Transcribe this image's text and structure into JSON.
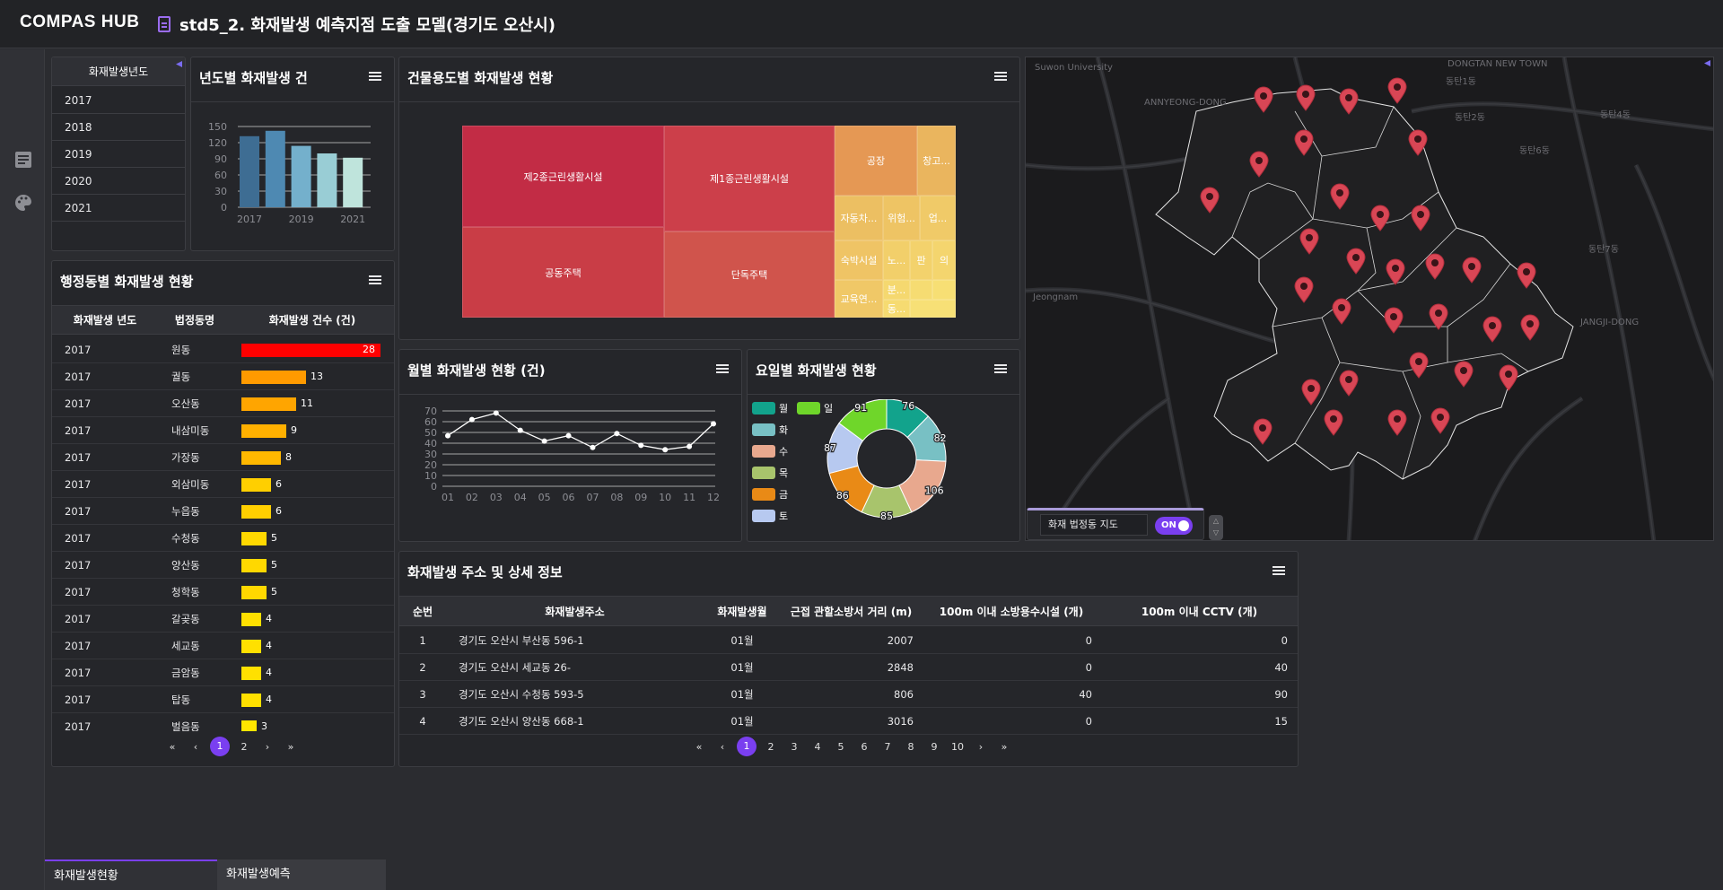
{
  "header": {
    "logo": "COMPAS HUB",
    "title": "std5_2. 화재발생 예측지점 도출 모델(경기도 오산시)"
  },
  "year_filter": {
    "header": "화재발생년도",
    "years": [
      "2017",
      "2018",
      "2019",
      "2020",
      "2021"
    ]
  },
  "yearly_chart": {
    "title": "년도별 화재발생 건",
    "chart_data": {
      "type": "bar",
      "categories": [
        "2017",
        "2018",
        "2019",
        "2020",
        "2021"
      ],
      "values": [
        132,
        142,
        114,
        100,
        92
      ],
      "ylim": [
        0,
        150
      ],
      "yticks": [
        0,
        30,
        60,
        90,
        120,
        150
      ],
      "xtick_labels": [
        "2017",
        "2019",
        "2021"
      ],
      "colors": [
        "#3e6d93",
        "#4e89b2",
        "#74b0cc",
        "#99cdd5",
        "#bfe4dc"
      ]
    }
  },
  "building_chart": {
    "title": "건물용도별 화재발생 현황",
    "chart_data": {
      "type": "treemap",
      "cells": [
        "제2종근린생활시설",
        "제1종근린생활시설",
        "공동주택",
        "단독주택",
        "공장",
        "창고...",
        "자동차...",
        "위험...",
        "업...",
        "숙박시설",
        "노...",
        "판",
        "의",
        "교육연...",
        "분...",
        "동..."
      ]
    }
  },
  "district_table": {
    "title": "행정동별 화재발생 현황",
    "columns": [
      "화재발생 년도",
      "법정동명",
      "화재발생 건수 (건)"
    ],
    "rows": [
      {
        "year": "2017",
        "dong": "원동",
        "count": "28",
        "value": 28,
        "color": "#ff0000"
      },
      {
        "year": "2017",
        "dong": "궐동",
        "count": "13",
        "value": 13,
        "color": "#ff9a00"
      },
      {
        "year": "2017",
        "dong": "오산동",
        "count": "11",
        "value": 11,
        "color": "#ffa500"
      },
      {
        "year": "2017",
        "dong": "내삼미동",
        "count": "9",
        "value": 9,
        "color": "#ffb000"
      },
      {
        "year": "2017",
        "dong": "가장동",
        "count": "8",
        "value": 8,
        "color": "#ffb800"
      },
      {
        "year": "2017",
        "dong": "외삼미동",
        "count": "6",
        "value": 6,
        "color": "#ffcf00"
      },
      {
        "year": "2017",
        "dong": "누읍동",
        "count": "6",
        "value": 6,
        "color": "#ffcf00"
      },
      {
        "year": "2017",
        "dong": "수청동",
        "count": "5",
        "value": 5,
        "color": "#ffd800"
      },
      {
        "year": "2017",
        "dong": "양산동",
        "count": "5",
        "value": 5,
        "color": "#ffd800"
      },
      {
        "year": "2017",
        "dong": "청학동",
        "count": "5",
        "value": 5,
        "color": "#ffd800"
      },
      {
        "year": "2017",
        "dong": "갈곶동",
        "count": "4",
        "value": 4,
        "color": "#ffe000"
      },
      {
        "year": "2017",
        "dong": "세교동",
        "count": "4",
        "value": 4,
        "color": "#ffe000"
      },
      {
        "year": "2017",
        "dong": "금암동",
        "count": "4",
        "value": 4,
        "color": "#ffe000"
      },
      {
        "year": "2017",
        "dong": "탑동",
        "count": "4",
        "value": 4,
        "color": "#ffe000"
      },
      {
        "year": "2017",
        "dong": "벌음동",
        "count": "3",
        "value": 3,
        "color": "#ffe600"
      }
    ],
    "pager": {
      "first": "«",
      "prev": "‹",
      "pages": [
        "1",
        "2"
      ],
      "next": "›",
      "last": "»"
    }
  },
  "monthly_chart": {
    "title": "월별 화재발생 현황 (건)",
    "chart_data": {
      "type": "line",
      "categories": [
        "01",
        "02",
        "03",
        "04",
        "05",
        "06",
        "07",
        "08",
        "09",
        "10",
        "11",
        "12"
      ],
      "values": [
        47,
        62,
        68,
        52,
        42,
        47,
        36,
        49,
        38,
        34,
        37,
        58
      ],
      "ylim": [
        0,
        70
      ],
      "yticks": [
        0,
        10,
        20,
        30,
        40,
        50,
        60,
        70
      ]
    }
  },
  "weekday_chart": {
    "title": "요일별 화재발생 현황",
    "chart_data": {
      "type": "pie",
      "legend": [
        "월",
        "일",
        "화",
        "수",
        "목",
        "금",
        "토"
      ],
      "slices": [
        {
          "name": "월",
          "value": 76,
          "label": "76",
          "color": "#12a38c"
        },
        {
          "name": "화",
          "value": 82,
          "label": "82",
          "color": "#78c0c4"
        },
        {
          "name": "수",
          "value": 106,
          "label": "106",
          "color": "#e8a88e"
        },
        {
          "name": "목",
          "value": 85,
          "label": "85",
          "color": "#a8c46c"
        },
        {
          "name": "금",
          "value": 86,
          "label": "86",
          "color": "#e98a16"
        },
        {
          "name": "토",
          "value": 87,
          "label": "87",
          "color": "#b7c9f0"
        },
        {
          "name": "일",
          "value": 91,
          "label": "91",
          "color": "#6fd62a"
        }
      ]
    }
  },
  "map": {
    "labels": [
      "Suwon University",
      "ANNYEONG-DONG",
      "DONGTAN NEW TOWN",
      "Jeongnam",
      "JANGJI-DONG",
      "동탄1동",
      "동탄2동",
      "동탄4동",
      "동탄6동",
      "동탄7동"
    ],
    "toggle_label": "화재 법정동 지도",
    "toggle_state": "ON"
  },
  "detail_table": {
    "title": "화재발생 주소 및 상세 정보",
    "columns": [
      "순번",
      "화재발생주소",
      "화재발생월",
      "근접 관할소방서 거리 (m)",
      "100m 이내 소방용수시설 (개)",
      "100m 이내 CCTV (개)"
    ],
    "rows": [
      {
        "no": "1",
        "addr": "경기도 오산시 부산동 596-1",
        "month": "01월",
        "dist": "2007",
        "hydrant": "0",
        "cctv": "0"
      },
      {
        "no": "2",
        "addr": "경기도 오산시 세교동 26-",
        "month": "01월",
        "dist": "2848",
        "hydrant": "0",
        "cctv": "40"
      },
      {
        "no": "3",
        "addr": "경기도 오산시 수청동 593-5",
        "month": "01월",
        "dist": "806",
        "hydrant": "40",
        "cctv": "90"
      },
      {
        "no": "4",
        "addr": "경기도 오산시 양산동 668-1",
        "month": "01월",
        "dist": "3016",
        "hydrant": "0",
        "cctv": "15"
      }
    ],
    "pager": {
      "first": "«",
      "prev": "‹",
      "pages": [
        "1",
        "2",
        "3",
        "4",
        "5",
        "6",
        "7",
        "8",
        "9",
        "10"
      ],
      "next": "›",
      "last": "»"
    }
  },
  "bottom_tabs": [
    "화재발생현황",
    "화재발생예측"
  ],
  "colors": {
    "accent": "#7a3ff0",
    "panel": "#25262a",
    "background": "#2b2c30"
  }
}
